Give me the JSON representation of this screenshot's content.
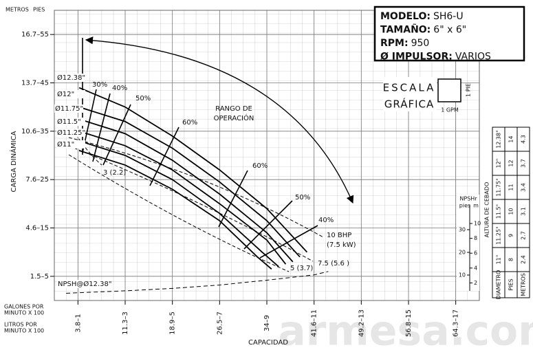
{
  "chart_data": {
    "type": "line",
    "y_axis_title": "CARGA DINÁMICA",
    "x_axis_title": "CAPACIDAD",
    "y_unit_labels": [
      "METROS",
      "PIES"
    ],
    "x_unit_labels": {
      "gpm": [
        "GALONES POR",
        "MINUTO X 100"
      ],
      "lpm": [
        "LITROS POR",
        "MINUTO X 100"
      ]
    },
    "xlim": [
      0,
      18
    ],
    "ylim": [
      0,
      60
    ],
    "xticks": [
      {
        "value": 1,
        "label": "3.8–1"
      },
      {
        "value": 3,
        "label": "11.3–3"
      },
      {
        "value": 5,
        "label": "18.9–5"
      },
      {
        "value": 7,
        "label": "26.5–7"
      },
      {
        "value": 9,
        "label": "34–9"
      },
      {
        "value": 11,
        "label": "41.6–11"
      },
      {
        "value": 13,
        "label": "49.2–13"
      },
      {
        "value": 15,
        "label": "56.8–15"
      },
      {
        "value": 17,
        "label": "64.3–17"
      }
    ],
    "yticks": [
      {
        "value": 5,
        "label": "1.5–5"
      },
      {
        "value": 15,
        "label": "4.6–15"
      },
      {
        "value": 25,
        "label": "7.6–25"
      },
      {
        "value": 35,
        "label": "10.6–35"
      },
      {
        "value": 45,
        "label": "13.7–45"
      },
      {
        "value": 55,
        "label": "16.7–55"
      }
    ],
    "grid": true,
    "series": [
      {
        "name": "Ø12.38\"",
        "color": "#000000",
        "x": [
          1.05,
          3,
          5,
          7,
          9,
          10.7
        ],
        "values": [
          44,
          40,
          34,
          27,
          19,
          10
        ]
      },
      {
        "name": "Ø12\"",
        "color": "#000000",
        "x": [
          1.05,
          3,
          5,
          7,
          9,
          10.4
        ],
        "values": [
          40,
          37,
          31.5,
          24.5,
          16.5,
          9
        ]
      },
      {
        "name": "Ø11.75\"",
        "color": "#000000",
        "x": [
          1.05,
          3,
          5,
          7,
          9,
          10.1
        ],
        "values": [
          37.5,
          34.5,
          29,
          22,
          14,
          8
        ]
      },
      {
        "name": "Ø11.5\"",
        "color": "#000000",
        "x": [
          1.05,
          3,
          5,
          7,
          9,
          9.8
        ],
        "values": [
          35,
          32,
          27,
          20,
          12.5,
          7.5
        ]
      },
      {
        "name": "Ø11.25\"",
        "color": "#000000",
        "x": [
          1.05,
          3,
          5,
          7,
          8.8,
          9.5
        ],
        "values": [
          33,
          30,
          25,
          18,
          10,
          7
        ]
      },
      {
        "name": "Ø11\"",
        "color": "#000000",
        "x": [
          1.05,
          3,
          5,
          7,
          8.6,
          9.2
        ],
        "values": [
          31,
          28,
          23,
          16.5,
          9,
          6.5
        ]
      },
      {
        "name": "NPSH@Ø12.38\"",
        "color": "#000000",
        "dashed": true,
        "x": [
          0.5,
          3,
          5,
          7,
          9,
          11,
          11.6
        ],
        "values": [
          1.5,
          2,
          2.5,
          3.2,
          4.2,
          5.3,
          6
        ]
      }
    ],
    "annotations": [
      "30%",
      "40%",
      "50%",
      "60%",
      "60%",
      "50%",
      "40%",
      "10 BHP",
      "(7.5 kW)",
      "7.5 (5.6 )",
      "5 (3.7)",
      "3 (2.2)",
      "RANGO DE",
      "OPERACIÓN"
    ],
    "npsh_axis": {
      "title": "NPSHr",
      "left_label": "pies",
      "right_label": "m",
      "pies_ticks": [
        10,
        20,
        30
      ],
      "m_ticks": [
        2,
        4,
        6,
        8,
        10
      ]
    }
  },
  "info": [
    {
      "label": "MODELO:",
      "value": "SH6-U"
    },
    {
      "label": "TAMAÑO:",
      "value": "6\" x 6\""
    },
    {
      "label": "RPM:",
      "value": "950"
    },
    {
      "label": "Ø IMPULSOR:",
      "value": "VARIOS"
    }
  ],
  "scale": {
    "title": [
      "ESCALA",
      "GRÁFICA"
    ],
    "vertical": "1 PIE",
    "horizontal": "1 GPM"
  },
  "table": {
    "title": "ALTURA DE CEBADO",
    "headers": [
      "DIAMETRO",
      "PIES",
      "METROS"
    ],
    "rows": [
      [
        "11\"",
        "8",
        "2.4"
      ],
      [
        "11.25\"",
        "9",
        "2.7"
      ],
      [
        "11.5\"",
        "10",
        "3.1"
      ],
      [
        "11.75\"",
        "11",
        "3.4"
      ],
      [
        "12\"",
        "12",
        "3.7"
      ],
      [
        "12.38\"",
        "14",
        "4.3"
      ]
    ]
  },
  "watermark": "armesa.com"
}
